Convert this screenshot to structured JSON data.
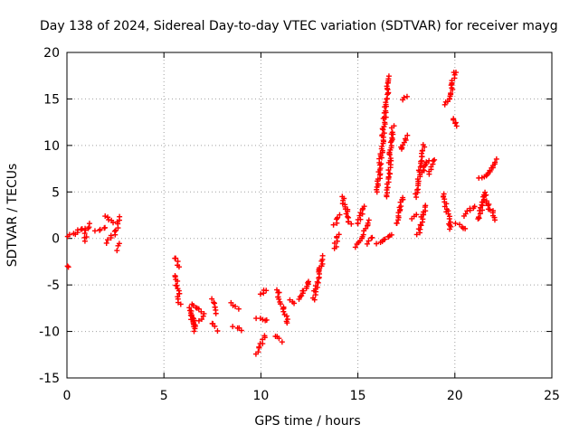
{
  "chart_data": {
    "type": "scatter",
    "title": "Day 138 of 2024, Sidereal Day-to-day VTEC variation (SDTVAR) for receiver mayg",
    "xlabel": "GPS time / hours",
    "ylabel": "SDTVAR / TECUs",
    "xlim": [
      0,
      25
    ],
    "ylim": [
      -15,
      20
    ],
    "xticks": [
      "0",
      "5",
      "10",
      "15",
      "20",
      "25"
    ],
    "yticks": [
      "-15",
      "-10",
      "-5",
      "0",
      "5",
      "10",
      "15",
      "20"
    ],
    "grid": true,
    "marker": "plus",
    "color": "#ff0000",
    "series": [
      {
        "name": "SDTVAR",
        "segments": [
          {
            "x": [
              0.0,
              0.1
            ],
            "y": [
              -3.1,
              -3.1
            ]
          },
          {
            "x": [
              0.05,
              0.15
            ],
            "y": [
              0.3,
              0.5
            ]
          },
          {
            "x": [
              0.3,
              0.9
            ],
            "y": [
              0.4,
              1.2
            ]
          },
          {
            "x": [
              0.9,
              1.1
            ],
            "y": [
              -0.2,
              1.5
            ]
          },
          {
            "x": [
              1.5,
              2.0
            ],
            "y": [
              0.8,
              1.3
            ]
          },
          {
            "x": [
              2.0,
              2.4
            ],
            "y": [
              2.4,
              1.8
            ]
          },
          {
            "x": [
              2.1,
              2.3
            ],
            "y": [
              -0.5,
              0.3
            ]
          },
          {
            "x": [
              2.5,
              2.7
            ],
            "y": [
              0.5,
              2.2
            ]
          },
          {
            "x": [
              2.6,
              2.7
            ],
            "y": [
              -1.2,
              -0.6
            ]
          },
          {
            "x": [
              5.6,
              5.8
            ],
            "y": [
              -2.0,
              -3.0
            ]
          },
          {
            "x": [
              5.6,
              5.8
            ],
            "y": [
              -4.0,
              -7.0
            ]
          },
          {
            "x": [
              6.3,
              6.6
            ],
            "y": [
              -7.5,
              -9.5
            ]
          },
          {
            "x": [
              6.4,
              6.6
            ],
            "y": [
              -8.0,
              -10.0
            ]
          },
          {
            "x": [
              6.5,
              7.0
            ],
            "y": [
              -7.0,
              -8.0
            ]
          },
          {
            "x": [
              6.8,
              7.0
            ],
            "y": [
              -9.0,
              -8.5
            ]
          },
          {
            "x": [
              7.5,
              7.7
            ],
            "y": [
              -6.5,
              -8.0
            ]
          },
          {
            "x": [
              7.5,
              7.7
            ],
            "y": [
              -9.0,
              -9.8
            ]
          },
          {
            "x": [
              8.5,
              8.8
            ],
            "y": [
              -7.0,
              -7.5
            ]
          },
          {
            "x": [
              8.6,
              9.0
            ],
            "y": [
              -9.5,
              -9.8
            ]
          },
          {
            "x": [
              9.8,
              10.2
            ],
            "y": [
              -12.3,
              -10.5
            ]
          },
          {
            "x": [
              9.8,
              10.3
            ],
            "y": [
              -8.5,
              -8.8
            ]
          },
          {
            "x": [
              10.0,
              10.3
            ],
            "y": [
              -6.0,
              -5.5
            ]
          },
          {
            "x": [
              10.8,
              11.1
            ],
            "y": [
              -10.5,
              -11.0
            ]
          },
          {
            "x": [
              10.8,
              11.4
            ],
            "y": [
              -5.5,
              -9.0
            ]
          },
          {
            "x": [
              11.5,
              11.7
            ],
            "y": [
              -6.5,
              -7.0
            ]
          },
          {
            "x": [
              12.0,
              12.5
            ],
            "y": [
              -6.5,
              -4.5
            ]
          },
          {
            "x": [
              12.7,
              13.2
            ],
            "y": [
              -6.5,
              -2.0
            ]
          },
          {
            "x": [
              13.8,
              14.0
            ],
            "y": [
              -1.0,
              0.5
            ]
          },
          {
            "x": [
              13.8,
              14.0
            ],
            "y": [
              1.5,
              2.5
            ]
          },
          {
            "x": [
              14.2,
              14.6
            ],
            "y": [
              4.5,
              1.5
            ]
          },
          {
            "x": [
              14.9,
              15.3
            ],
            "y": [
              -0.8,
              0.5
            ]
          },
          {
            "x": [
              15.0,
              15.3
            ],
            "y": [
              1.5,
              3.5
            ]
          },
          {
            "x": [
              15.3,
              15.6
            ],
            "y": [
              0.8,
              2.0
            ]
          },
          {
            "x": [
              15.5,
              15.7
            ],
            "y": [
              -0.5,
              0.2
            ]
          },
          {
            "x": [
              16.0,
              16.6
            ],
            "y": [
              5.0,
              17.5
            ]
          },
          {
            "x": [
              16.0,
              16.8
            ],
            "y": [
              -0.5,
              0.5
            ]
          },
          {
            "x": [
              16.5,
              16.8
            ],
            "y": [
              4.5,
              12.0
            ]
          },
          {
            "x": [
              17.0,
              17.3
            ],
            "y": [
              1.5,
              4.5
            ]
          },
          {
            "x": [
              17.2,
              17.5
            ],
            "y": [
              9.5,
              11.0
            ]
          },
          {
            "x": [
              17.3,
              17.5
            ],
            "y": [
              14.8,
              15.2
            ]
          },
          {
            "x": [
              17.8,
              18.0
            ],
            "y": [
              2.0,
              2.5
            ]
          },
          {
            "x": [
              18.0,
              18.4
            ],
            "y": [
              4.5,
              10.0
            ]
          },
          {
            "x": [
              18.1,
              18.5
            ],
            "y": [
              0.5,
              3.5
            ]
          },
          {
            "x": [
              18.3,
              18.6
            ],
            "y": [
              7.0,
              8.5
            ]
          },
          {
            "x": [
              18.7,
              18.9
            ],
            "y": [
              7.0,
              8.5
            ]
          },
          {
            "x": [
              19.4,
              19.8
            ],
            "y": [
              4.8,
              1.0
            ]
          },
          {
            "x": [
              19.5,
              19.7
            ],
            "y": [
              14.5,
              15.0
            ]
          },
          {
            "x": [
              19.7,
              20.0
            ],
            "y": [
              14.8,
              18.0
            ]
          },
          {
            "x": [
              19.9,
              20.1
            ],
            "y": [
              13.0,
              12.0
            ]
          },
          {
            "x": [
              20.1,
              20.5
            ],
            "y": [
              1.5,
              1.0
            ]
          },
          {
            "x": [
              20.5,
              21.0
            ],
            "y": [
              2.5,
              3.5
            ]
          },
          {
            "x": [
              21.2,
              21.6
            ],
            "y": [
              2.0,
              5.0
            ]
          },
          {
            "x": [
              21.3,
              21.7
            ],
            "y": [
              6.5,
              7.0
            ]
          },
          {
            "x": [
              21.5,
              22.1
            ],
            "y": [
              4.5,
              2.0
            ]
          },
          {
            "x": [
              21.7,
              22.2
            ],
            "y": [
              7.0,
              8.5
            ]
          }
        ]
      }
    ]
  }
}
